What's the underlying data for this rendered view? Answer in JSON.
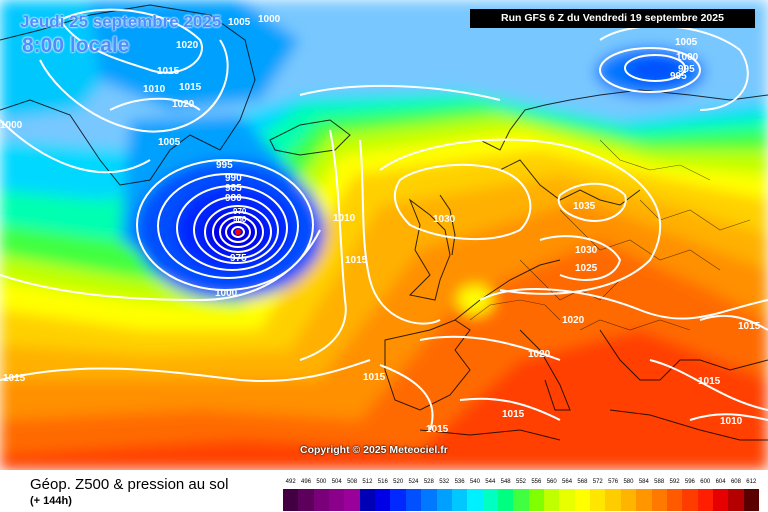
{
  "header": {
    "date": "Jeudi 25 septembre 2025",
    "time": "8:00 locale",
    "run": "Run GFS 6 Z du Vendredi 19 septembre 2025"
  },
  "copyright": "Copyright © 2025 Meteociel.fr",
  "footer": {
    "title": "Géop. Z500 & pression au sol",
    "subtitle": "(+ 144h)"
  },
  "legend": {
    "values": [
      "492",
      "496",
      "500",
      "504",
      "508",
      "512",
      "516",
      "520",
      "524",
      "528",
      "532",
      "536",
      "540",
      "544",
      "548",
      "552",
      "556",
      "560",
      "564",
      "568",
      "572",
      "576",
      "580",
      "584",
      "588",
      "592",
      "596",
      "600",
      "604",
      "608",
      "612"
    ],
    "colors": [
      "#420042",
      "#5c005c",
      "#7a007a",
      "#8a008a",
      "#9a009a",
      "#0000b4",
      "#0000e6",
      "#0028ff",
      "#0050ff",
      "#0078ff",
      "#00a0ff",
      "#00c8ff",
      "#00f0ff",
      "#00ffc0",
      "#00ff80",
      "#40ff40",
      "#80ff00",
      "#c0ff00",
      "#e8ff00",
      "#ffff00",
      "#ffe600",
      "#ffcc00",
      "#ffb400",
      "#ff9600",
      "#ff7800",
      "#ff5a00",
      "#ff3c00",
      "#ff1e00",
      "#e60000",
      "#b40000",
      "#5a0000"
    ]
  },
  "isobar_labels": [
    "1005",
    "1000",
    "1020",
    "1015",
    "1010",
    "1015",
    "1020",
    "1000",
    "1005",
    "995",
    "990",
    "985",
    "980",
    "970",
    "960",
    "975",
    "1000",
    "1010",
    "1015",
    "1030",
    "1035",
    "1030",
    "1025",
    "1020",
    "1020",
    "1015",
    "1015",
    "1015",
    "1015",
    "1015",
    "1010",
    "1015",
    "1005",
    "1000",
    "995",
    "995"
  ]
}
